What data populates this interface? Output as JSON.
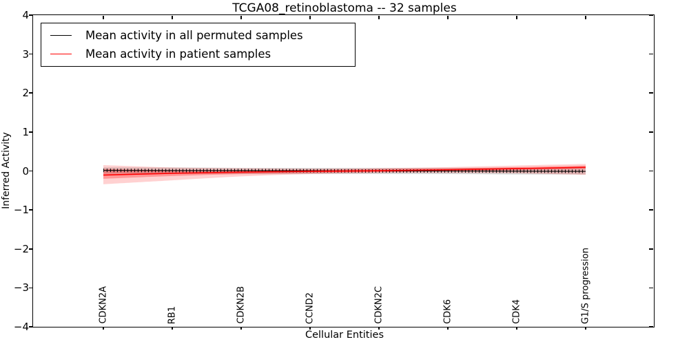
{
  "title": "TCGA08_retinoblastoma -- 32 samples",
  "legend": {
    "items": [
      {
        "label": "Mean activity in all permuted samples",
        "color": "#000000"
      },
      {
        "label": "Mean activity in patient samples",
        "color": "#ff0000"
      }
    ]
  },
  "chart_data": {
    "type": "line",
    "title": "TCGA08_retinoblastoma -- 32 samples",
    "xlabel": "Cellular Entities",
    "ylabel": "Inferred Activity",
    "ylim": [
      -4,
      4
    ],
    "yticks": [
      4,
      3,
      2,
      1,
      0,
      -1,
      -2,
      -3,
      -4
    ],
    "categories": [
      "CDKN2A",
      "RB1",
      "CDKN2B",
      "CCND2",
      "CDKN2C",
      "CDK6",
      "CDK4",
      "G1/S progression"
    ],
    "grid": false,
    "legend_position": "upper left",
    "series": [
      {
        "name": "Mean activity in all permuted samples",
        "color": "#000000",
        "marker": "plus",
        "values": [
          0.015,
          0.01,
          0.01,
          0.005,
          0.0,
          0.0,
          -0.005,
          -0.01
        ],
        "band_upper": [
          0.09,
          0.09,
          0.08,
          0.08,
          0.08,
          0.08,
          0.08,
          0.08
        ],
        "band_lower": [
          -0.07,
          -0.07,
          -0.08,
          -0.08,
          -0.08,
          -0.08,
          -0.09,
          -0.09
        ],
        "band_color": "rgba(0,0,0,0.15)"
      },
      {
        "name": "Mean activity in patient samples",
        "color": "#ff0000",
        "values": [
          -0.105,
          -0.06,
          -0.03,
          -0.01,
          0.005,
          0.03,
          0.06,
          0.095
        ],
        "band_upper": [
          0.15,
          0.09,
          0.07,
          0.06,
          0.07,
          0.1,
          0.14,
          0.18
        ],
        "band_lower": [
          -0.34,
          -0.24,
          -0.14,
          -0.08,
          -0.05,
          -0.05,
          -0.06,
          -0.1
        ],
        "band_color": "rgba(255,0,0,0.18)",
        "band2_upper": [
          0.05,
          0.02,
          0.02,
          0.03,
          0.05,
          0.07,
          0.1,
          0.14
        ],
        "band2_lower": [
          -0.2,
          -0.13,
          -0.08,
          -0.05,
          -0.03,
          -0.01,
          0.02,
          0.05
        ],
        "band2_color": "rgba(255,0,0,0.28)"
      }
    ]
  }
}
